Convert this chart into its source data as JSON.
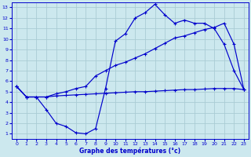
{
  "bg_color": "#cce8ee",
  "grid_color": "#aaccd4",
  "line_color": "#0000cc",
  "xlabel": "Graphe des températures (°c)",
  "xlabel_color": "#0000cc",
  "ylabel_ticks": [
    1,
    2,
    3,
    4,
    5,
    6,
    7,
    8,
    9,
    10,
    11,
    12,
    13
  ],
  "xlabel_ticks": [
    0,
    1,
    2,
    3,
    4,
    5,
    6,
    7,
    8,
    9,
    10,
    11,
    12,
    13,
    14,
    15,
    16,
    17,
    18,
    19,
    20,
    21,
    22,
    23
  ],
  "xlim": [
    -0.5,
    23.5
  ],
  "ylim": [
    0.5,
    13.5
  ],
  "line1_x": [
    0,
    1,
    2,
    3,
    4,
    5,
    6,
    7,
    8,
    9,
    10,
    11,
    12,
    13,
    14,
    15,
    16,
    17,
    18,
    19,
    20,
    21,
    22,
    23
  ],
  "line1_y": [
    5.5,
    4.5,
    4.5,
    3.3,
    2.0,
    1.7,
    1.1,
    1.0,
    1.5,
    5.3,
    9.8,
    10.5,
    12.0,
    12.5,
    13.3,
    12.3,
    11.5,
    11.8,
    11.5,
    11.5,
    11.0,
    9.5,
    7.0,
    5.2
  ],
  "line2_x": [
    0,
    1,
    2,
    3,
    4,
    5,
    6,
    7,
    8,
    9,
    10,
    11,
    12,
    13,
    14,
    15,
    16,
    17,
    18,
    19,
    20,
    21,
    22,
    23
  ],
  "line2_y": [
    5.5,
    4.5,
    4.5,
    4.5,
    4.8,
    5.0,
    5.3,
    5.5,
    6.5,
    7.0,
    7.5,
    7.8,
    8.2,
    8.6,
    9.1,
    9.6,
    10.1,
    10.3,
    10.6,
    10.9,
    11.1,
    11.5,
    9.5,
    5.2
  ],
  "line3_x": [
    0,
    1,
    2,
    3,
    4,
    5,
    6,
    7,
    8,
    9,
    10,
    11,
    12,
    13,
    14,
    15,
    16,
    17,
    18,
    19,
    20,
    21,
    22,
    23
  ],
  "line3_y": [
    5.5,
    4.5,
    4.5,
    4.5,
    4.6,
    4.65,
    4.7,
    4.75,
    4.8,
    4.85,
    4.9,
    4.95,
    5.0,
    5.0,
    5.05,
    5.1,
    5.15,
    5.2,
    5.2,
    5.25,
    5.3,
    5.3,
    5.3,
    5.2
  ]
}
